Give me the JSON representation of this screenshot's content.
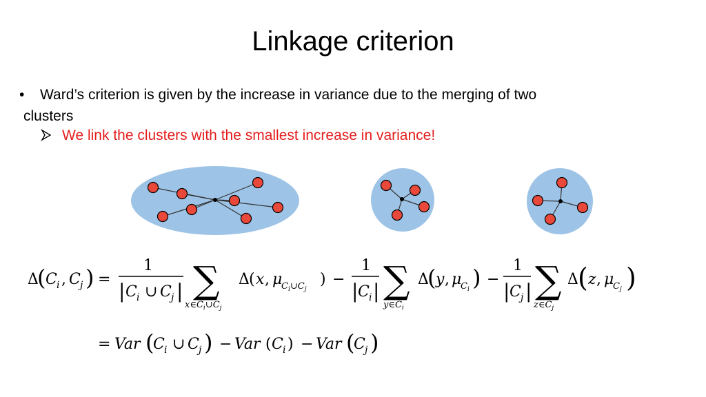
{
  "slide": {
    "title": "Linkage criterion",
    "bullet_marker": "•",
    "bullet_line1": "Ward’s criterion is given by the increase in variance due to the merging of two",
    "bullet_line2": "clusters",
    "sub_bullet": "We link the clusters with the smallest increase in variance!"
  },
  "colors": {
    "cluster_fill": "#9dc3e6",
    "point_fill": "#e8493a",
    "point_stroke": "#000000",
    "sub_bullet_text": "#e51c1c"
  },
  "icons": {
    "sub_bullet_marker": "arrow-bullet-icon"
  },
  "formula": {
    "delta": "Δ",
    "one": "1",
    "Ci": "C",
    "i": "i",
    "j": "j",
    "union": "∪",
    "sum": "∑",
    "eq": "=",
    "minus": "−",
    "x": "x",
    "y": "y",
    "z": "z",
    "mu": "μ",
    "in": "∈",
    "comma": ",",
    "var": "Var"
  }
}
